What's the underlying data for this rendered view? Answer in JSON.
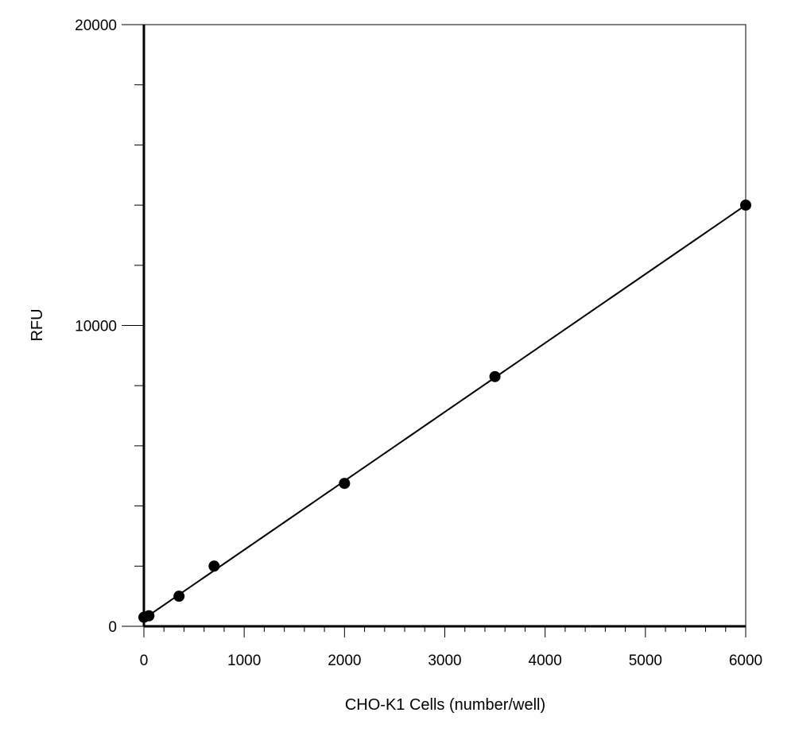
{
  "chart_data": {
    "type": "scatter",
    "title": "",
    "xlabel": "CHO-K1 Cells (number/well)",
    "ylabel": "RFU",
    "xlim": [
      0,
      6000
    ],
    "ylim": [
      0,
      20000
    ],
    "x_major_ticks": [
      0,
      1000,
      2000,
      3000,
      4000,
      5000,
      6000
    ],
    "x_tick_labels": [
      "0",
      "1000",
      "2000",
      "3000",
      "4000",
      "5000",
      "6000"
    ],
    "x_minor_step": 200,
    "y_major_ticks": [
      0,
      10000,
      20000
    ],
    "y_tick_labels": [
      "0",
      "10000",
      "20000"
    ],
    "y_minor_step": 2000,
    "grid": false,
    "legend": "none",
    "series": [
      {
        "color": "#000000",
        "marker": "circle",
        "points": [
          {
            "x": 0,
            "y": 300
          },
          {
            "x": 50,
            "y": 350
          },
          {
            "x": 350,
            "y": 1000
          },
          {
            "x": 700,
            "y": 2000
          },
          {
            "x": 2000,
            "y": 4750
          },
          {
            "x": 3500,
            "y": 8300
          },
          {
            "x": 6000,
            "y": 14000
          }
        ]
      }
    ],
    "fit_line": {
      "type": "linear",
      "color": "#000000",
      "from": {
        "x": 0,
        "y": 250
      },
      "to": {
        "x": 6000,
        "y": 14000
      }
    }
  }
}
